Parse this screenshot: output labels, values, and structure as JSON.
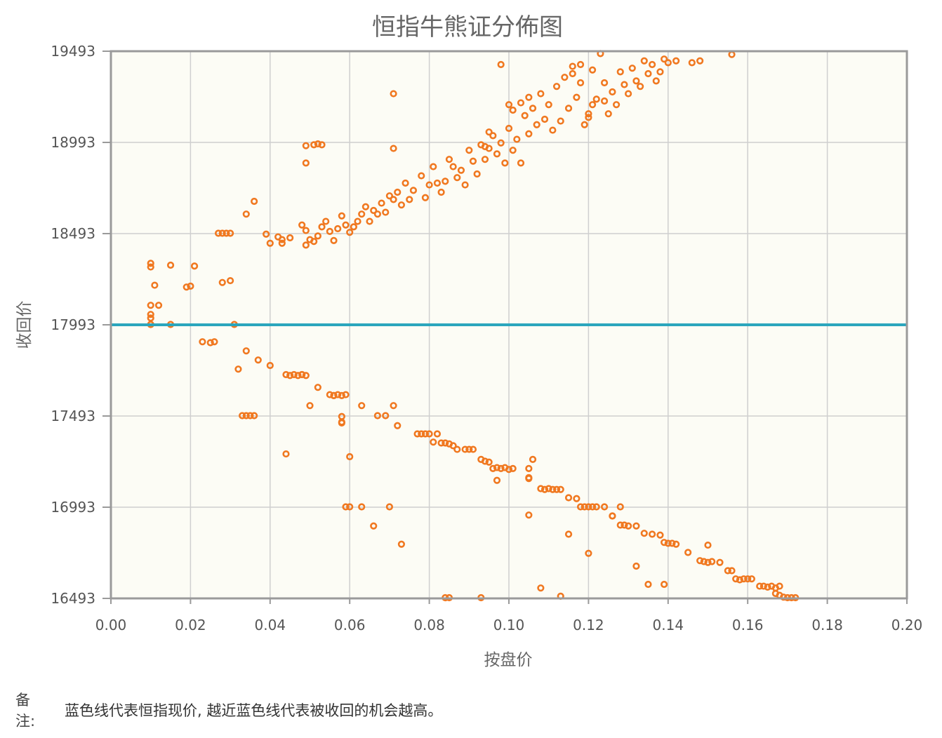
{
  "colors": {
    "plot_background": "#fcfcf5",
    "grid": "#cfcfcf",
    "frame": "#9a9a9a",
    "points": "#f07820",
    "reference_line": "#2ba6bd",
    "text": "#555555"
  },
  "note": {
    "label": "备注:",
    "text": "蓝色线代表恒指现价, 越近蓝色线代表被收回的机会越高。"
  },
  "chart_data": {
    "type": "scatter",
    "title": "恒指牛熊证分佈图",
    "xlabel": "按盘价",
    "ylabel": "收回价",
    "xlim": [
      0,
      0.2
    ],
    "ylim": [
      16493,
      19493
    ],
    "x_ticks": [
      "0.00",
      "0.02",
      "0.04",
      "0.06",
      "0.08",
      "0.10",
      "0.12",
      "0.14",
      "0.16",
      "0.18",
      "0.20"
    ],
    "y_ticks": [
      "16493",
      "16993",
      "17493",
      "17993",
      "18493",
      "18993",
      "19493"
    ],
    "grid": true,
    "reference_line": {
      "axis": "y",
      "value": 17993,
      "meaning": "恒指现价"
    },
    "series": [
      {
        "points": [
          [
            0.01,
            18330
          ],
          [
            0.01,
            18310
          ],
          [
            0.011,
            18210
          ],
          [
            0.01,
            18100
          ],
          [
            0.012,
            18100
          ],
          [
            0.01,
            18050
          ],
          [
            0.01,
            18030
          ],
          [
            0.01,
            17995
          ],
          [
            0.015,
            17995
          ],
          [
            0.015,
            18320
          ],
          [
            0.019,
            18200
          ],
          [
            0.02,
            18205
          ],
          [
            0.021,
            18315
          ],
          [
            0.027,
            18495
          ],
          [
            0.028,
            18495
          ],
          [
            0.029,
            18495
          ],
          [
            0.03,
            18495
          ],
          [
            0.028,
            18225
          ],
          [
            0.03,
            18235
          ],
          [
            0.031,
            17995
          ],
          [
            0.034,
            18600
          ],
          [
            0.036,
            18670
          ],
          [
            0.039,
            18490
          ],
          [
            0.04,
            18440
          ],
          [
            0.042,
            18475
          ],
          [
            0.043,
            18460
          ],
          [
            0.043,
            18440
          ],
          [
            0.045,
            18470
          ],
          [
            0.048,
            18540
          ],
          [
            0.049,
            18510
          ],
          [
            0.049,
            18430
          ],
          [
            0.05,
            18460
          ],
          [
            0.051,
            18450
          ],
          [
            0.052,
            18480
          ],
          [
            0.053,
            18530
          ],
          [
            0.054,
            18560
          ],
          [
            0.055,
            18505
          ],
          [
            0.056,
            18455
          ],
          [
            0.057,
            18520
          ],
          [
            0.058,
            18590
          ],
          [
            0.059,
            18540
          ],
          [
            0.06,
            18500
          ],
          [
            0.061,
            18530
          ],
          [
            0.062,
            18560
          ],
          [
            0.063,
            18600
          ],
          [
            0.064,
            18640
          ],
          [
            0.065,
            18560
          ],
          [
            0.066,
            18620
          ],
          [
            0.067,
            18600
          ],
          [
            0.068,
            18660
          ],
          [
            0.069,
            18610
          ],
          [
            0.07,
            18700
          ],
          [
            0.071,
            18680
          ],
          [
            0.072,
            18720
          ],
          [
            0.073,
            18650
          ],
          [
            0.074,
            18770
          ],
          [
            0.075,
            18680
          ],
          [
            0.076,
            18730
          ],
          [
            0.078,
            18810
          ],
          [
            0.079,
            18690
          ],
          [
            0.08,
            18760
          ],
          [
            0.081,
            18860
          ],
          [
            0.082,
            18770
          ],
          [
            0.083,
            18720
          ],
          [
            0.084,
            18780
          ],
          [
            0.085,
            18900
          ],
          [
            0.086,
            18860
          ],
          [
            0.087,
            18800
          ],
          [
            0.088,
            18840
          ],
          [
            0.089,
            18760
          ],
          [
            0.09,
            18950
          ],
          [
            0.091,
            18890
          ],
          [
            0.092,
            18820
          ],
          [
            0.093,
            18980
          ],
          [
            0.094,
            18900
          ],
          [
            0.095,
            18960
          ],
          [
            0.096,
            19030
          ],
          [
            0.097,
            18930
          ],
          [
            0.098,
            18990
          ],
          [
            0.099,
            18880
          ],
          [
            0.1,
            19070
          ],
          [
            0.101,
            18950
          ],
          [
            0.102,
            19010
          ],
          [
            0.103,
            18880
          ],
          [
            0.104,
            19140
          ],
          [
            0.105,
            19040
          ],
          [
            0.106,
            19180
          ],
          [
            0.107,
            19090
          ],
          [
            0.108,
            19260
          ],
          [
            0.109,
            19120
          ],
          [
            0.11,
            19200
          ],
          [
            0.111,
            19060
          ],
          [
            0.112,
            19300
          ],
          [
            0.113,
            19110
          ],
          [
            0.114,
            19350
          ],
          [
            0.115,
            19180
          ],
          [
            0.116,
            19410
          ],
          [
            0.117,
            19240
          ],
          [
            0.118,
            19320
          ],
          [
            0.119,
            19090
          ],
          [
            0.12,
            19130
          ],
          [
            0.121,
            19200
          ],
          [
            0.122,
            19230
          ],
          [
            0.123,
            19480
          ],
          [
            0.124,
            19320
          ],
          [
            0.125,
            19150
          ],
          [
            0.126,
            19270
          ],
          [
            0.127,
            19200
          ],
          [
            0.128,
            19380
          ],
          [
            0.129,
            19310
          ],
          [
            0.13,
            19260
          ],
          [
            0.131,
            19400
          ],
          [
            0.132,
            19330
          ],
          [
            0.133,
            19300
          ],
          [
            0.134,
            19440
          ],
          [
            0.135,
            19370
          ],
          [
            0.136,
            19420
          ],
          [
            0.137,
            19330
          ],
          [
            0.138,
            19380
          ],
          [
            0.139,
            19450
          ],
          [
            0.14,
            19430
          ],
          [
            0.142,
            19440
          ],
          [
            0.146,
            19430
          ],
          [
            0.148,
            19440
          ],
          [
            0.156,
            19475
          ],
          [
            0.049,
            18975
          ],
          [
            0.051,
            18980
          ],
          [
            0.052,
            18985
          ],
          [
            0.053,
            18980
          ],
          [
            0.049,
            18880
          ],
          [
            0.071,
            19260
          ],
          [
            0.071,
            18960
          ],
          [
            0.098,
            19420
          ],
          [
            0.01,
            17995
          ],
          [
            0.094,
            18970
          ],
          [
            0.095,
            19050
          ],
          [
            0.1,
            19200
          ],
          [
            0.101,
            19170
          ],
          [
            0.103,
            19210
          ],
          [
            0.105,
            19240
          ],
          [
            0.116,
            19370
          ],
          [
            0.118,
            19420
          ],
          [
            0.12,
            19150
          ],
          [
            0.121,
            19390
          ],
          [
            0.124,
            19220
          ]
        ]
      },
      {
        "points": [
          [
            0.023,
            17900
          ],
          [
            0.025,
            17895
          ],
          [
            0.026,
            17900
          ],
          [
            0.032,
            17750
          ],
          [
            0.033,
            17495
          ],
          [
            0.034,
            17495
          ],
          [
            0.035,
            17495
          ],
          [
            0.036,
            17495
          ],
          [
            0.034,
            17850
          ],
          [
            0.037,
            17800
          ],
          [
            0.04,
            17770
          ],
          [
            0.044,
            17720
          ],
          [
            0.045,
            17715
          ],
          [
            0.046,
            17720
          ],
          [
            0.047,
            17715
          ],
          [
            0.048,
            17720
          ],
          [
            0.049,
            17715
          ],
          [
            0.05,
            17550
          ],
          [
            0.052,
            17650
          ],
          [
            0.055,
            17610
          ],
          [
            0.056,
            17605
          ],
          [
            0.057,
            17610
          ],
          [
            0.058,
            17605
          ],
          [
            0.059,
            17610
          ],
          [
            0.058,
            17490
          ],
          [
            0.058,
            17460
          ],
          [
            0.044,
            17285
          ],
          [
            0.06,
            17270
          ],
          [
            0.059,
            16995
          ],
          [
            0.06,
            16995
          ],
          [
            0.063,
            16995
          ],
          [
            0.063,
            17550
          ],
          [
            0.066,
            16890
          ],
          [
            0.067,
            17495
          ],
          [
            0.069,
            17495
          ],
          [
            0.07,
            16995
          ],
          [
            0.071,
            17550
          ],
          [
            0.072,
            17440
          ],
          [
            0.073,
            16790
          ],
          [
            0.077,
            17395
          ],
          [
            0.078,
            17395
          ],
          [
            0.079,
            17395
          ],
          [
            0.08,
            17395
          ],
          [
            0.081,
            17350
          ],
          [
            0.082,
            17395
          ],
          [
            0.083,
            17345
          ],
          [
            0.084,
            17345
          ],
          [
            0.085,
            17340
          ],
          [
            0.086,
            17330
          ],
          [
            0.087,
            17310
          ],
          [
            0.089,
            17310
          ],
          [
            0.09,
            17310
          ],
          [
            0.091,
            17310
          ],
          [
            0.093,
            17255
          ],
          [
            0.094,
            17245
          ],
          [
            0.095,
            17240
          ],
          [
            0.096,
            17205
          ],
          [
            0.097,
            17210
          ],
          [
            0.098,
            17205
          ],
          [
            0.099,
            17210
          ],
          [
            0.1,
            17200
          ],
          [
            0.101,
            17205
          ],
          [
            0.105,
            17155
          ],
          [
            0.105,
            17205
          ],
          [
            0.106,
            17255
          ],
          [
            0.105,
            17150
          ],
          [
            0.108,
            17095
          ],
          [
            0.109,
            17090
          ],
          [
            0.11,
            17095
          ],
          [
            0.111,
            17090
          ],
          [
            0.112,
            17090
          ],
          [
            0.113,
            17090
          ],
          [
            0.115,
            17045
          ],
          [
            0.117,
            17040
          ],
          [
            0.118,
            16995
          ],
          [
            0.119,
            16995
          ],
          [
            0.12,
            16995
          ],
          [
            0.121,
            16995
          ],
          [
            0.122,
            16995
          ],
          [
            0.124,
            16995
          ],
          [
            0.126,
            16945
          ],
          [
            0.126,
            16945
          ],
          [
            0.128,
            16995
          ],
          [
            0.128,
            16895
          ],
          [
            0.129,
            16895
          ],
          [
            0.13,
            16890
          ],
          [
            0.132,
            16890
          ],
          [
            0.134,
            16850
          ],
          [
            0.136,
            16845
          ],
          [
            0.138,
            16840
          ],
          [
            0.139,
            16800
          ],
          [
            0.14,
            16795
          ],
          [
            0.141,
            16795
          ],
          [
            0.142,
            16790
          ],
          [
            0.145,
            16745
          ],
          [
            0.148,
            16700
          ],
          [
            0.149,
            16695
          ],
          [
            0.15,
            16690
          ],
          [
            0.15,
            16785
          ],
          [
            0.151,
            16695
          ],
          [
            0.153,
            16690
          ],
          [
            0.155,
            16645
          ],
          [
            0.156,
            16645
          ],
          [
            0.157,
            16600
          ],
          [
            0.158,
            16595
          ],
          [
            0.159,
            16600
          ],
          [
            0.16,
            16600
          ],
          [
            0.161,
            16600
          ],
          [
            0.163,
            16560
          ],
          [
            0.164,
            16560
          ],
          [
            0.165,
            16555
          ],
          [
            0.166,
            16560
          ],
          [
            0.167,
            16550
          ],
          [
            0.168,
            16560
          ],
          [
            0.167,
            16520
          ],
          [
            0.168,
            16510
          ],
          [
            0.169,
            16500
          ],
          [
            0.17,
            16495
          ],
          [
            0.171,
            16495
          ],
          [
            0.172,
            16495
          ],
          [
            0.105,
            16950
          ],
          [
            0.115,
            16845
          ],
          [
            0.12,
            16740
          ],
          [
            0.132,
            16670
          ],
          [
            0.135,
            16570
          ],
          [
            0.139,
            16570
          ],
          [
            0.108,
            16550
          ],
          [
            0.113,
            16505
          ],
          [
            0.084,
            16495
          ],
          [
            0.085,
            16495
          ],
          [
            0.093,
            16495
          ],
          [
            0.097,
            17140
          ],
          [
            0.058,
            17455
          ],
          [
            0.056,
            17605
          ],
          [
            0.048,
            17720
          ]
        ]
      }
    ]
  }
}
